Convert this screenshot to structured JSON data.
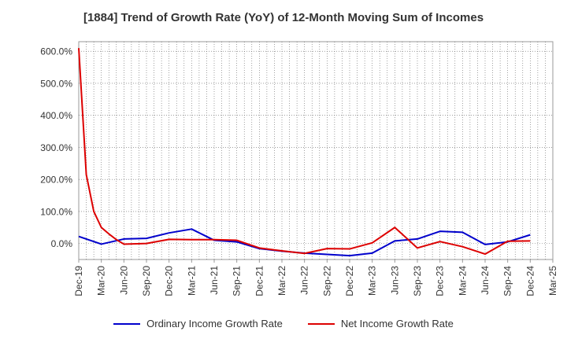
{
  "chart_data": {
    "type": "line",
    "title": "[1884]  Trend of Growth Rate (YoY) of 12-Month Moving Sum of Incomes",
    "xlabel": "",
    "ylabel": "",
    "x_tick_labels": [
      "Dec-19",
      "Mar-20",
      "Jun-20",
      "Sep-20",
      "Dec-20",
      "Mar-21",
      "Jun-21",
      "Sep-21",
      "Dec-21",
      "Mar-22",
      "Jun-22",
      "Sep-22",
      "Dec-22",
      "Mar-23",
      "Jun-23",
      "Sep-23",
      "Dec-23",
      "Mar-24",
      "Jun-24",
      "Sep-24",
      "Dec-24",
      "Mar-25"
    ],
    "x_months_per_tick": 3,
    "x_months_total": 63,
    "y_ticks": [
      0,
      100,
      200,
      300,
      400,
      500,
      600
    ],
    "y_tick_format": "%.1f%%",
    "ylim": [
      -50,
      630
    ],
    "grid": true,
    "legend_position": "bottom",
    "series": [
      {
        "name": "Ordinary Income Growth Rate",
        "color": "#0000cc",
        "x_month_index": [
          0,
          3,
          6,
          9,
          12,
          15,
          18,
          21,
          24,
          27,
          30,
          33,
          36,
          39,
          42,
          45,
          48,
          51,
          54,
          57,
          60
        ],
        "values": [
          22,
          -2,
          14,
          16,
          33,
          45,
          10,
          5,
          -16,
          -24,
          -30,
          -34,
          -38,
          -30,
          8,
          14,
          38,
          35,
          -3,
          5,
          27
        ]
      },
      {
        "name": "Net Income Growth Rate",
        "color": "#dd0000",
        "x_month_index": [
          0,
          1,
          2,
          3,
          4,
          5,
          6,
          9,
          12,
          15,
          18,
          21,
          24,
          27,
          30,
          33,
          36,
          39,
          42,
          45,
          48,
          51,
          54,
          57,
          60
        ],
        "values": [
          610,
          215,
          100,
          50,
          30,
          12,
          -2,
          0,
          13,
          12,
          12,
          10,
          -14,
          -23,
          -31,
          -16,
          -17,
          2,
          50,
          -14,
          6,
          -10,
          -33,
          7,
          8
        ]
      }
    ]
  }
}
